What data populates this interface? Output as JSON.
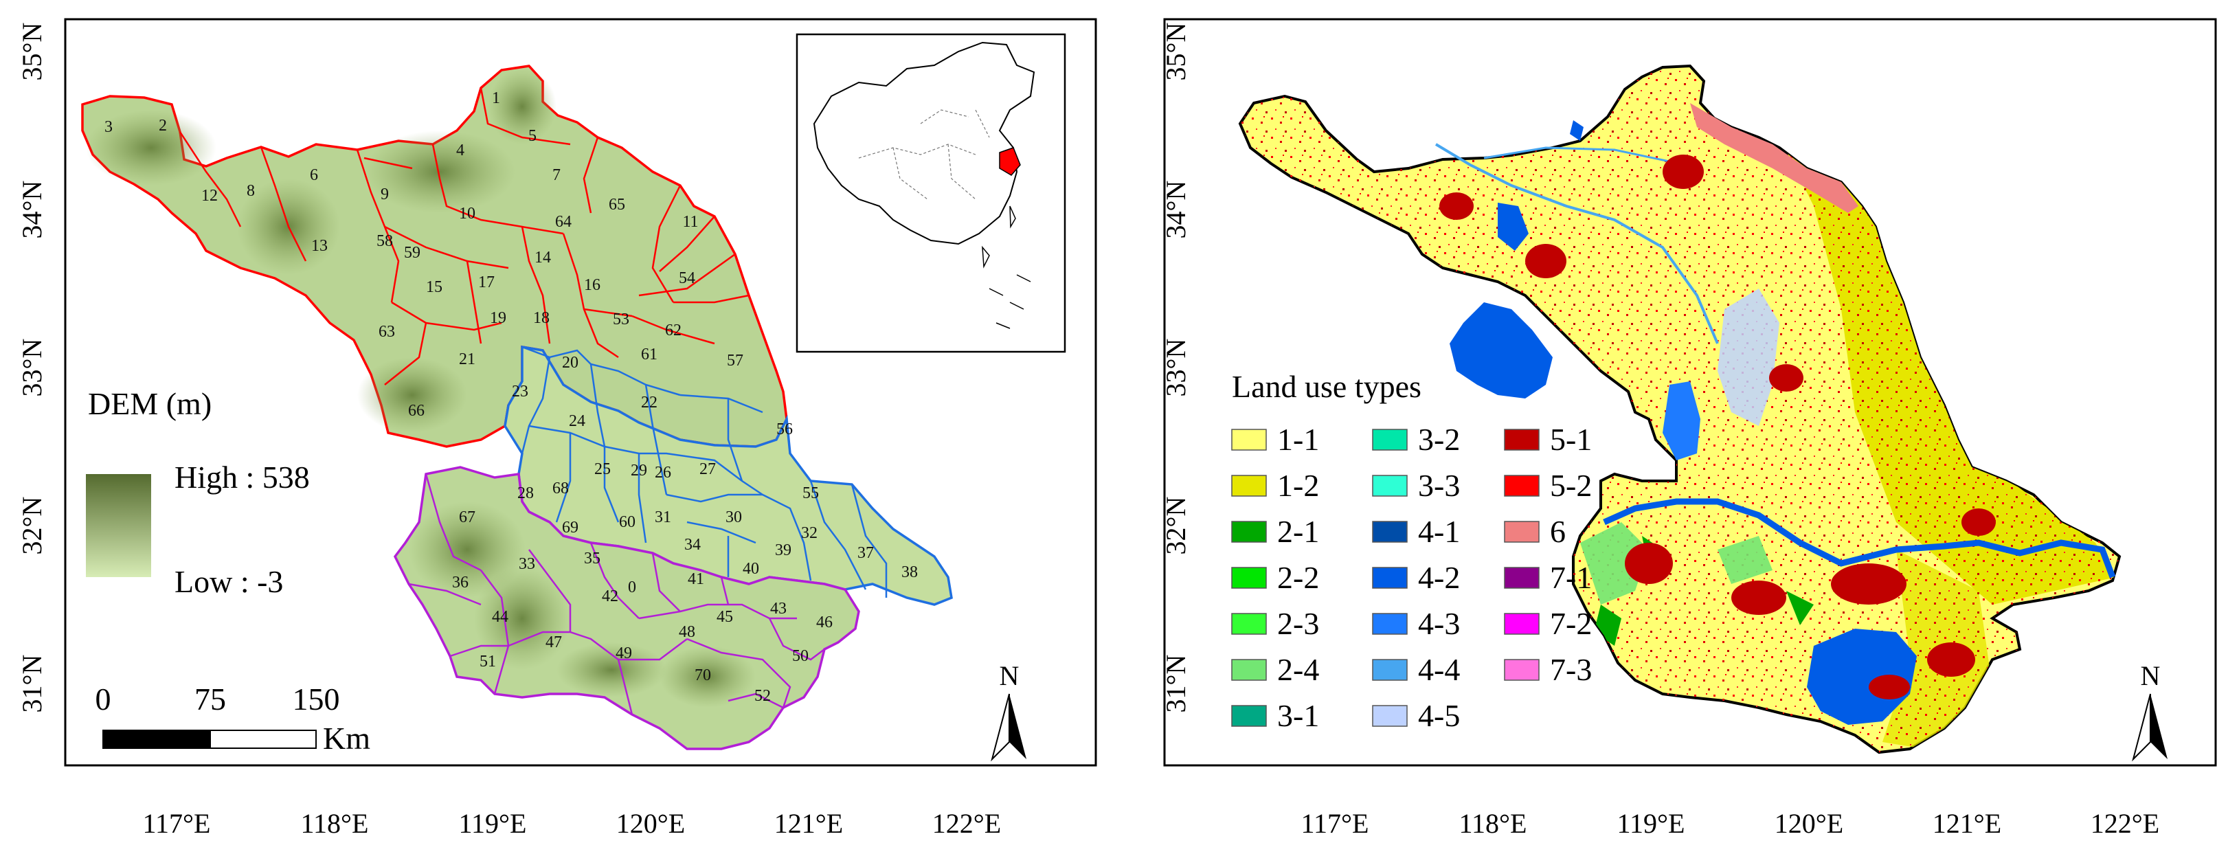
{
  "left_map": {
    "lat_ticks": [
      "35°N",
      "34°N",
      "33°N",
      "32°N",
      "31°N"
    ],
    "lon_ticks": [
      "117°E",
      "118°E",
      "119°E",
      "120°E",
      "121°E",
      "122°E"
    ],
    "legend_title": "DEM (m)",
    "legend_high": "High : 538",
    "legend_low": "Low : -3",
    "scale": {
      "t0": "0",
      "t1": "75",
      "t2": "150",
      "unit": "Km"
    },
    "north": "N",
    "region_numbers": [
      "1",
      "2",
      "3",
      "4",
      "5",
      "6",
      "7",
      "8",
      "9",
      "10",
      "11",
      "12",
      "13",
      "14",
      "15",
      "16",
      "17",
      "18",
      "19",
      "20",
      "21",
      "22",
      "23",
      "24",
      "25",
      "26",
      "27",
      "28",
      "29",
      "30",
      "31",
      "32",
      "33",
      "34",
      "35",
      "36",
      "37",
      "38",
      "39",
      "40",
      "41",
      "42",
      "43",
      "44",
      "45",
      "46",
      "47",
      "48",
      "49",
      "50",
      "51",
      "52",
      "53",
      "54",
      "55",
      "56",
      "57",
      "58",
      "59",
      "60",
      "61",
      "62",
      "63",
      "64",
      "65",
      "66",
      "67",
      "68",
      "69",
      "70",
      "0"
    ],
    "colors": {
      "dem_high": "#556b2f",
      "dem_low": "#d7ecb5",
      "north_group": "#ff0000",
      "central_group": "#1f6fe0",
      "south_group": "#b21fd6"
    }
  },
  "right_map": {
    "lat_ticks": [
      "35°N",
      "34°N",
      "33°N",
      "32°N",
      "31°N"
    ],
    "lon_ticks": [
      "117°E",
      "118°E",
      "119°E",
      "120°E",
      "121°E",
      "122°E"
    ],
    "legend_title": "Land use types",
    "legend": [
      {
        "code": "1-1",
        "color": "#ffff73"
      },
      {
        "code": "1-2",
        "color": "#e6e600"
      },
      {
        "code": "2-1",
        "color": "#00a800"
      },
      {
        "code": "2-2",
        "color": "#00e600"
      },
      {
        "code": "2-3",
        "color": "#33ff33"
      },
      {
        "code": "2-4",
        "color": "#73e673"
      },
      {
        "code": "3-1",
        "color": "#00a884"
      },
      {
        "code": "3-2",
        "color": "#00e6a9"
      },
      {
        "code": "3-3",
        "color": "#2effd5"
      },
      {
        "code": "4-1",
        "color": "#004da8"
      },
      {
        "code": "4-2",
        "color": "#005ce6"
      },
      {
        "code": "4-3",
        "color": "#1e7bff"
      },
      {
        "code": "4-4",
        "color": "#47a6f0"
      },
      {
        "code": "4-5",
        "color": "#bed2ff"
      },
      {
        "code": "5-1",
        "color": "#c00000"
      },
      {
        "code": "5-2",
        "color": "#ff0000"
      },
      {
        "code": "6",
        "color": "#f08080"
      },
      {
        "code": "7-1",
        "color": "#8b008b"
      },
      {
        "code": "7-2",
        "color": "#ff00ff"
      },
      {
        "code": "7-3",
        "color": "#ff73df"
      }
    ],
    "north": "N"
  }
}
